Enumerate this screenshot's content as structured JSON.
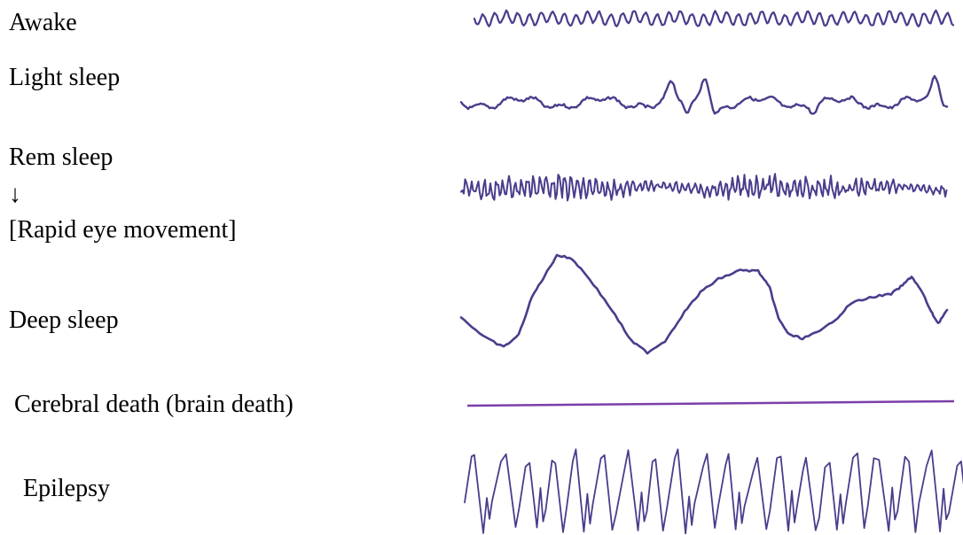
{
  "labels": {
    "awake": "Awake",
    "light_sleep": "Light sleep",
    "rem_sleep": "Rem sleep",
    "rem_arrow": "↓",
    "rem_detail": "[Rapid eye movement]",
    "deep_sleep": "Deep sleep",
    "cerebral_death": "Cerebral death (brain death)",
    "epilepsy": "Epilepsy"
  },
  "colors": {
    "wave": "#4b3c8c",
    "flat_line": "#7a3fa8",
    "text": "#000000"
  }
}
